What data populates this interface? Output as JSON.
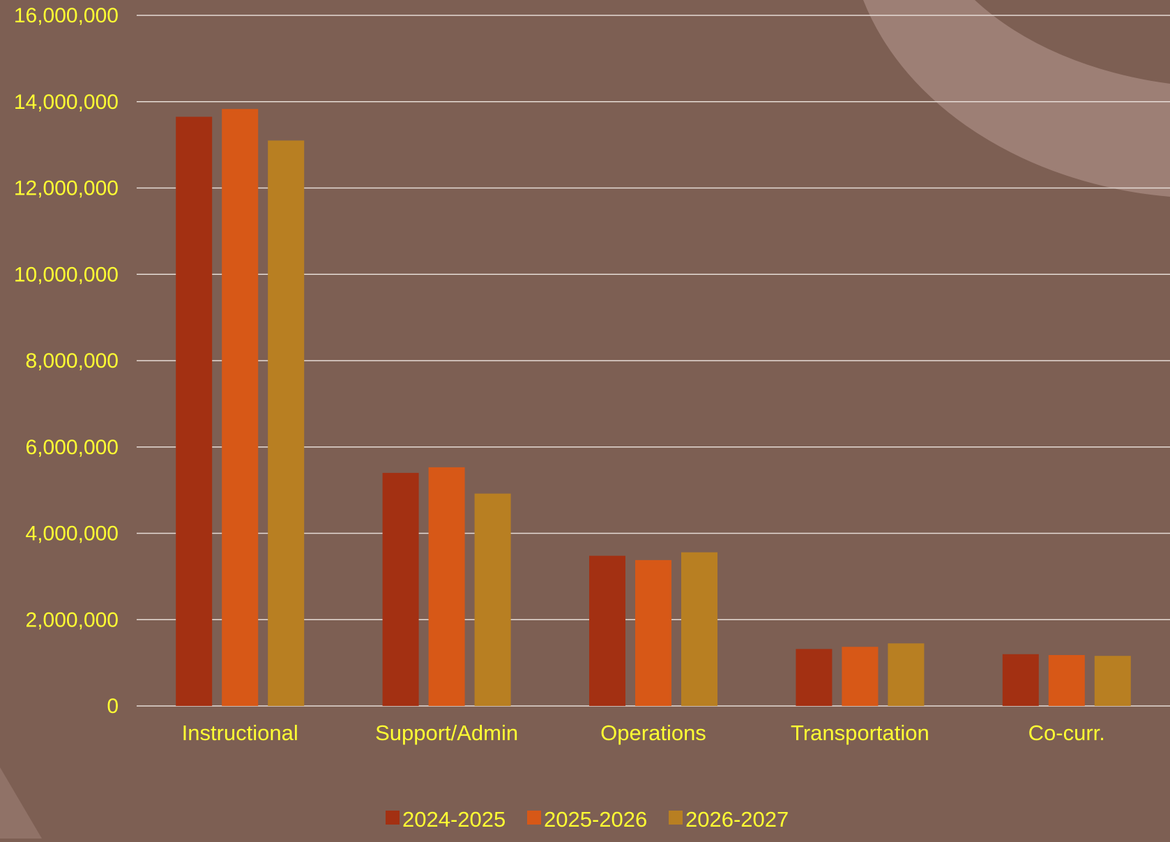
{
  "colors": {
    "background": "#7d5f53",
    "grid": "#e6dcd6",
    "text": "#ffff33",
    "series": [
      "#a33012",
      "#d75817",
      "#b87f22"
    ],
    "decor": "#a88a80"
  },
  "chart_data": {
    "type": "bar",
    "title": "",
    "xlabel": "",
    "ylabel": "",
    "ylim": [
      0,
      16000000
    ],
    "yticks": [
      0,
      2000000,
      4000000,
      6000000,
      8000000,
      10000000,
      12000000,
      14000000,
      16000000
    ],
    "ytick_labels": [
      "0",
      "2,000,000",
      "4,000,000",
      "6,000,000",
      "8,000,000",
      "10,000,000",
      "12,000,000",
      "14,000,000",
      "16,000,000"
    ],
    "categories": [
      "Instructional",
      "Support/Admin",
      "Operations",
      "Transportation",
      "Co-curr."
    ],
    "series": [
      {
        "name": "2024-2025",
        "values": [
          13650000,
          5400000,
          3480000,
          1320000,
          1200000
        ]
      },
      {
        "name": "2025-2026",
        "values": [
          13830000,
          5530000,
          3380000,
          1370000,
          1180000
        ]
      },
      {
        "name": "2026-2027",
        "values": [
          13100000,
          4920000,
          3560000,
          1450000,
          1160000
        ]
      }
    ],
    "grid": true,
    "legend_position": "bottom-center"
  }
}
